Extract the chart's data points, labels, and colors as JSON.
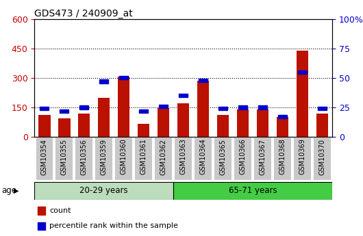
{
  "title": "GDS473 / 240909_at",
  "samples": [
    "GSM10354",
    "GSM10355",
    "GSM10356",
    "GSM10359",
    "GSM10360",
    "GSM10361",
    "GSM10362",
    "GSM10363",
    "GSM10364",
    "GSM10365",
    "GSM10366",
    "GSM10367",
    "GSM10368",
    "GSM10369",
    "GSM10370"
  ],
  "counts": [
    110,
    95,
    120,
    200,
    305,
    65,
    145,
    170,
    285,
    110,
    140,
    140,
    100,
    440,
    120
  ],
  "percentiles": [
    24,
    22,
    25,
    47,
    50,
    22,
    26,
    35,
    48,
    24,
    25,
    25,
    17,
    55,
    24
  ],
  "group1_label": "20-29 years",
  "group2_label": "65-71 years",
  "group1_count": 7,
  "group2_count": 8,
  "bar_color": "#bb1100",
  "percentile_color": "#0000cc",
  "group1_bg": "#bbddbb",
  "group2_bg": "#44cc44",
  "ylim_left": [
    0,
    600
  ],
  "ylim_right": [
    0,
    100
  ],
  "yticks_left": [
    0,
    150,
    300,
    450,
    600
  ],
  "yticks_right": [
    0,
    25,
    50,
    75,
    100
  ],
  "ytick_right_labels": [
    "0",
    "25",
    "50",
    "75",
    "100%"
  ],
  "left_tick_color": "#cc0000",
  "right_tick_color": "#0000cc",
  "age_label": "age",
  "legend_count": "count",
  "legend_percentile": "percentile rank within the sample",
  "background_color": "#ffffff",
  "xticklabel_bg": "#c8c8c8"
}
